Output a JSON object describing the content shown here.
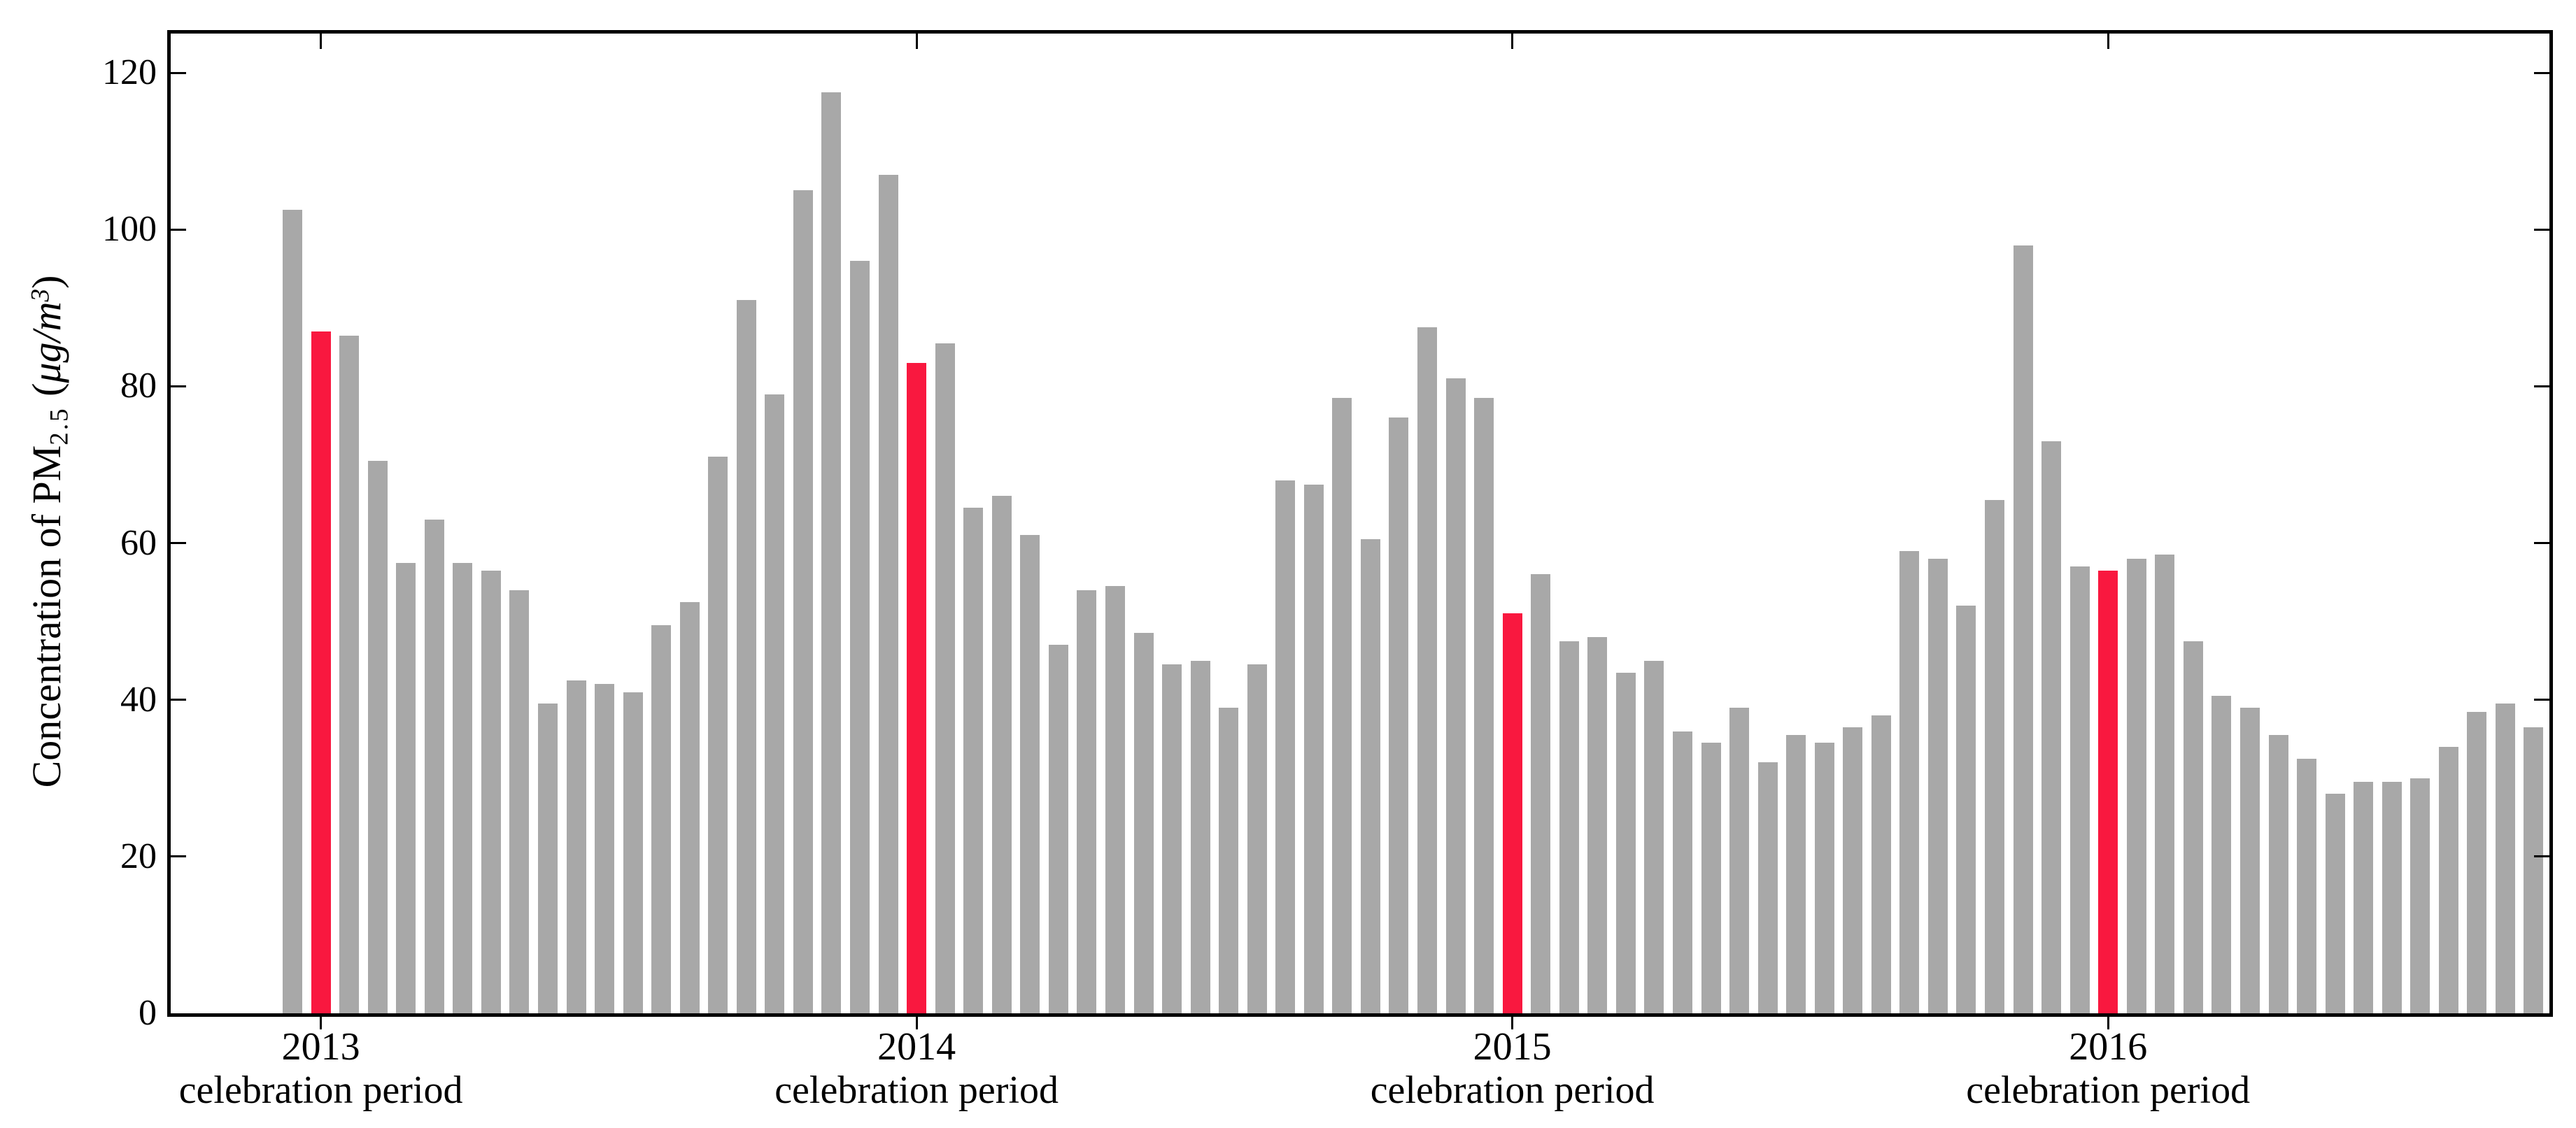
{
  "chart_data": {
    "type": "bar",
    "title": "",
    "ylabel": "Concentration of PM2.5 (μg/m3)",
    "ylabel_parts": {
      "prefix": "Concentration of PM",
      "sub": "2.5",
      "open_paren": " (",
      "unit": "μg/m",
      "sup": "3",
      "close_paren": ")"
    },
    "ylim": [
      0,
      125
    ],
    "yticks": [
      0,
      20,
      40,
      60,
      80,
      100,
      120
    ],
    "grid": false,
    "legend": "none",
    "bar_color": "#a8a8a8",
    "highlight_color": "#f9183f",
    "axis_color": "#000000",
    "values": [
      102.5,
      87,
      86.5,
      70.5,
      57.5,
      63,
      57.5,
      56.5,
      54,
      39.5,
      42.5,
      42,
      41,
      49.5,
      52.5,
      71,
      91,
      79,
      105,
      117.5,
      96,
      107,
      83,
      85.5,
      64.5,
      66,
      61,
      47,
      54,
      54.5,
      48.5,
      44.5,
      45,
      39,
      44.5,
      68,
      67.5,
      78.5,
      60.5,
      76,
      87.5,
      81,
      78.5,
      51,
      56,
      47.5,
      48,
      43.5,
      45,
      36,
      34.5,
      39,
      32,
      35.5,
      34.5,
      36.5,
      38,
      59,
      58,
      52,
      65.5,
      98,
      73,
      57,
      56.5,
      58,
      58.5,
      47.5,
      40.5,
      39,
      35.5,
      32.5,
      28,
      29.5,
      29.5,
      30,
      34,
      38.5,
      39.5,
      36.5
    ],
    "highlight_indices": [
      1,
      22,
      43,
      64
    ],
    "groups": [
      {
        "year": "2013",
        "caption": "celebration period"
      },
      {
        "year": "2014",
        "caption": "celebration period"
      },
      {
        "year": "2015",
        "caption": "celebration period"
      },
      {
        "year": "2016",
        "caption": "celebration period"
      }
    ]
  }
}
